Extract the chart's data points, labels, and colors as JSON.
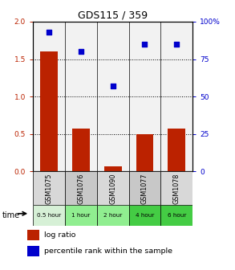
{
  "title": "GDS115 / 359",
  "categories": [
    "GSM1075",
    "GSM1076",
    "GSM1090",
    "GSM1077",
    "GSM1078"
  ],
  "time_labels": [
    "0.5 hour",
    "1 hour",
    "2 hour",
    "4 hour",
    "6 hour"
  ],
  "time_colors": [
    "#d6f0d6",
    "#90ee90",
    "#90ee90",
    "#44cc44",
    "#44cc44"
  ],
  "log_ratio": [
    1.6,
    0.57,
    0.07,
    0.5,
    0.57
  ],
  "percentile_rank": [
    93,
    80,
    57,
    85,
    85
  ],
  "bar_color": "#bb2200",
  "scatter_color": "#0000cc",
  "left_ylim": [
    0,
    2
  ],
  "right_ylim": [
    0,
    100
  ],
  "left_yticks": [
    0,
    0.5,
    1.0,
    1.5,
    2.0
  ],
  "right_yticks": [
    0,
    25,
    50,
    75,
    100
  ],
  "right_yticklabels": [
    "0",
    "25",
    "50",
    "75",
    "100%"
  ],
  "dotted_lines": [
    0.5,
    1.0,
    1.5
  ],
  "bar_width": 0.55,
  "cell_color_odd": "#c8c8c8",
  "cell_color_even": "#d8d8d8"
}
